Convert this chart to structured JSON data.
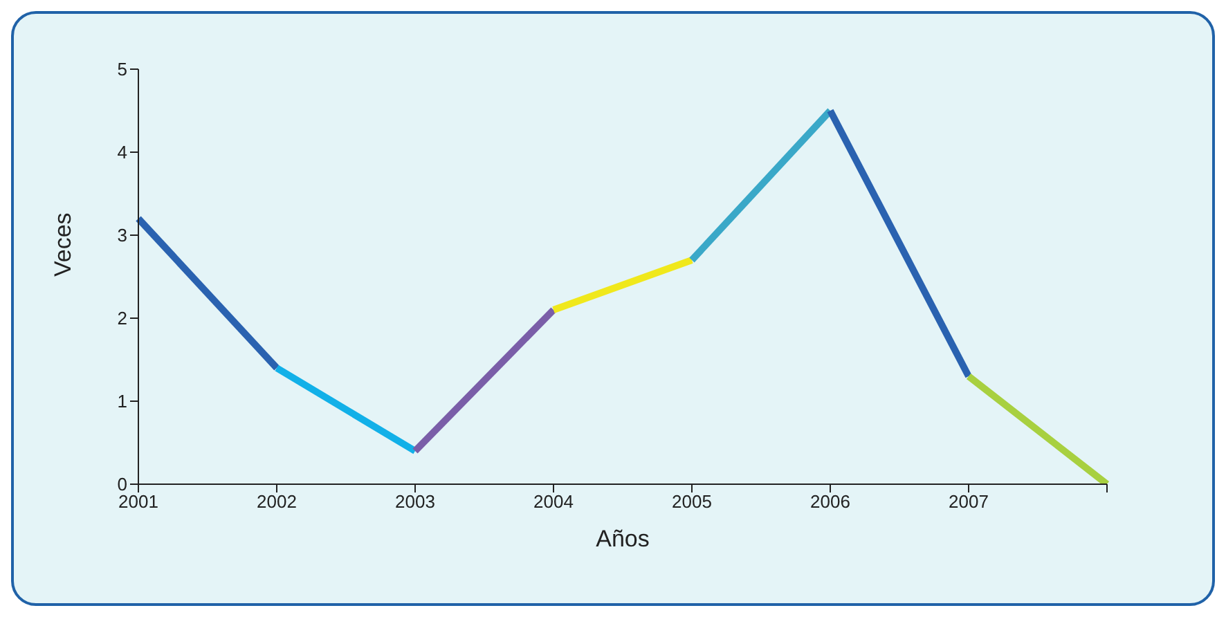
{
  "chart_data": {
    "type": "line",
    "xlabel": "Años",
    "ylabel": "Veces",
    "categories": [
      "2001",
      "2002",
      "2003",
      "2004",
      "2005",
      "2006",
      "2007",
      null
    ],
    "ylim": [
      0,
      5
    ],
    "yticks": [
      0,
      1,
      2,
      3,
      4,
      5
    ],
    "series": [
      {
        "color": "#2a62b0",
        "values": [
          3.2,
          1.4,
          null,
          null,
          null,
          null,
          null,
          null
        ]
      },
      {
        "color": "#12b0e8",
        "values": [
          null,
          1.4,
          0.4,
          null,
          null,
          null,
          null,
          null
        ]
      },
      {
        "color": "#7a5ea8",
        "values": [
          null,
          null,
          0.4,
          2.1,
          null,
          null,
          null,
          null
        ]
      },
      {
        "color": "#f0e81c",
        "values": [
          null,
          null,
          null,
          2.1,
          2.7,
          null,
          null,
          null
        ]
      },
      {
        "color": "#3aa8c8",
        "values": [
          null,
          null,
          null,
          null,
          2.7,
          4.5,
          null,
          null
        ]
      },
      {
        "color": "#2a62b0",
        "values": [
          null,
          null,
          null,
          null,
          null,
          4.5,
          1.3,
          null
        ]
      },
      {
        "color": "#a8d040",
        "values": [
          null,
          null,
          null,
          null,
          null,
          null,
          1.3,
          0
        ]
      }
    ]
  }
}
